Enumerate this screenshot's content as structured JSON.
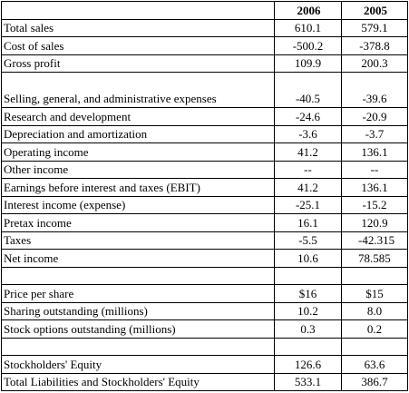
{
  "table": {
    "headers": [
      "",
      "2006",
      "2005"
    ],
    "rows": [
      {
        "label": "Total sales",
        "v2006": "610.1",
        "v2005": "579.1"
      },
      {
        "label": "Cost of sales",
        "v2006": "-500.2",
        "v2005": "-378.8"
      },
      {
        "label": "Gross profit",
        "v2006": "109.9",
        "v2005": "200.3"
      },
      {
        "label": "Selling, general, and administrative expenses",
        "v2006": "-40.5",
        "v2005": "-39.6"
      },
      {
        "label": "Research and development",
        "v2006": "-24.6",
        "v2005": "-20.9"
      },
      {
        "label": "Depreciation and amortization",
        "v2006": "-3.6",
        "v2005": "-3.7"
      },
      {
        "label": "Operating income",
        "v2006": "41.2",
        "v2005": "136.1"
      },
      {
        "label": "Other income",
        "v2006": "--",
        "v2005": "--"
      },
      {
        "label": "Earnings before interest and taxes (EBIT)",
        "v2006": "41.2",
        "v2005": "136.1"
      },
      {
        "label": "Interest income (expense)",
        "v2006": "-25.1",
        "v2005": "-15.2"
      },
      {
        "label": "Pretax income",
        "v2006": "16.1",
        "v2005": "120.9"
      },
      {
        "label": "Taxes",
        "v2006": "-5.5",
        "v2005": "-42.315"
      },
      {
        "label": "Net income",
        "v2006": "10.6",
        "v2005": "78.585"
      },
      {
        "label": "",
        "v2006": "",
        "v2005": ""
      },
      {
        "label": "Price per share",
        "v2006": "$16",
        "v2005": "$15"
      },
      {
        "label": "Sharing outstanding (millions)",
        "v2006": "10.2",
        "v2005": "8.0"
      },
      {
        "label": "Stock options outstanding (millions)",
        "v2006": "0.3",
        "v2005": "0.2"
      },
      {
        "label": "",
        "v2006": "",
        "v2005": ""
      },
      {
        "label": "Stockholders' Equity",
        "v2006": "126.6",
        "v2005": "63.6"
      },
      {
        "label": "Total Liabilities and Stockholders' Equity",
        "v2006": "533.1",
        "v2005": "386.7"
      }
    ]
  }
}
